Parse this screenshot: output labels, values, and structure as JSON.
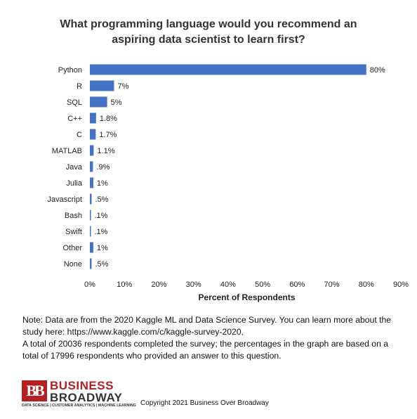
{
  "chart_data": {
    "type": "bar",
    "orientation": "horizontal",
    "title": "What programming language would you recommend an aspiring data scientist to learn first?",
    "title_lines": [
      "What programming language would you recommend an",
      "aspiring data scientist to learn first?"
    ],
    "xlabel": "Percent of Respondents",
    "ylabel": "",
    "xlim": [
      0,
      90
    ],
    "x_ticks": [
      0,
      10,
      20,
      30,
      40,
      50,
      60,
      70,
      80,
      90
    ],
    "x_tick_labels": [
      "0%",
      "10%",
      "20%",
      "30%",
      "40%",
      "50%",
      "60%",
      "70%",
      "80%",
      "90%"
    ],
    "grid": false,
    "bar_color": "#4472C4",
    "categories": [
      "Python",
      "R",
      "SQL",
      "C++",
      "C",
      "MATLAB",
      "Java",
      "Julia",
      "Javascript",
      "Bash",
      "Swift",
      "Other",
      "None"
    ],
    "values": [
      80,
      7,
      5,
      1.8,
      1.7,
      1.1,
      0.9,
      1,
      0.5,
      0.1,
      0.1,
      1,
      0.5
    ],
    "value_labels": [
      "80%",
      "7%",
      "5%",
      "1.8%",
      "1.7%",
      "1.1%",
      ".9%",
      "1%",
      ".5%",
      ".1%",
      ".1%",
      "1%",
      ".5%"
    ]
  },
  "note": {
    "paragraph1": "Note: Data are from the 2020 Kaggle ML and Data Science Survey. You can learn more about the study here: https://www.kaggle.com/c/kaggle-survey-2020.",
    "paragraph2": "A total of 20036 respondents completed the survey; the percentages in the graph are based on a total of 17996 respondents who provided an answer to this question."
  },
  "logo": {
    "mark": "BB",
    "line1": "BUSINESS",
    "line2": "BROADWAY",
    "tagline": "DATA SCIENCE | CUSTOMER ANALYTICS | MACHINE LEARNING",
    "color": "#b51f24"
  },
  "copyright": "Copyright 2021 Business Over Broadway"
}
